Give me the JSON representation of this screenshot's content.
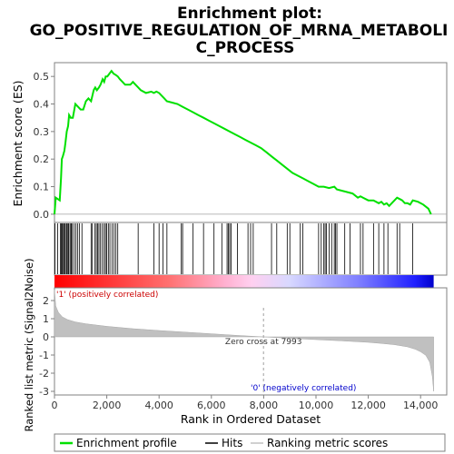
{
  "title_line1": "Enrichment plot:",
  "title_line2": "GO_POSITIVE_REGULATION_OF_MRNA_METABOLI",
  "title_line3": "C_PROCESS",
  "chart_data": {
    "type": "line",
    "top_panel": {
      "ylabel": "Enrichment score (ES)",
      "ylim": [
        -0.03,
        0.55
      ],
      "yticks": [
        "0.0",
        "0.1",
        "0.2",
        "0.3",
        "0.4",
        "0.5"
      ],
      "ytick_values": [
        0.0,
        0.1,
        0.2,
        0.3,
        0.4,
        0.5
      ],
      "series_color": "#00e000",
      "es_curve_x": [
        0,
        50,
        200,
        250,
        280,
        320,
        380,
        420,
        470,
        520,
        560,
        620,
        700,
        800,
        900,
        1000,
        1100,
        1200,
        1300,
        1400,
        1500,
        1560,
        1620,
        1700,
        1760,
        1840,
        1900,
        1960,
        2020,
        2100,
        2180,
        2260,
        2350,
        2420,
        2500,
        2600,
        2700,
        2800,
        2900,
        3000,
        3100,
        3200,
        3300,
        3500,
        3700,
        3800,
        3900,
        4000,
        4100,
        4200,
        4300,
        4500,
        4700,
        4900,
        5100,
        5300,
        5500,
        5700,
        5900,
        6100,
        6300,
        6500,
        6700,
        6900,
        7100,
        7300,
        7500,
        7700,
        7900,
        8100,
        8300,
        8500,
        8700,
        8900,
        9100,
        9300,
        9500,
        9700,
        9900,
        10100,
        10300,
        10500,
        10700,
        10800,
        11000,
        11200,
        11400,
        11600,
        11700,
        11800,
        12000,
        12200,
        12400,
        12500,
        12600,
        12700,
        12800,
        12950,
        13100,
        13200,
        13300,
        13400,
        13500,
        13600,
        13700,
        13900,
        14100,
        14300,
        14400
      ],
      "es_curve_y": [
        0.0,
        0.06,
        0.05,
        0.13,
        0.2,
        0.21,
        0.23,
        0.26,
        0.3,
        0.32,
        0.36,
        0.35,
        0.35,
        0.4,
        0.39,
        0.38,
        0.38,
        0.41,
        0.42,
        0.41,
        0.45,
        0.46,
        0.45,
        0.46,
        0.47,
        0.49,
        0.48,
        0.5,
        0.5,
        0.51,
        0.52,
        0.51,
        0.505,
        0.5,
        0.49,
        0.48,
        0.47,
        0.47,
        0.47,
        0.48,
        0.47,
        0.46,
        0.45,
        0.44,
        0.445,
        0.44,
        0.445,
        0.44,
        0.43,
        0.42,
        0.41,
        0.405,
        0.4,
        0.39,
        0.38,
        0.37,
        0.36,
        0.35,
        0.34,
        0.33,
        0.32,
        0.31,
        0.3,
        0.29,
        0.28,
        0.27,
        0.26,
        0.25,
        0.24,
        0.225,
        0.21,
        0.195,
        0.18,
        0.165,
        0.15,
        0.14,
        0.13,
        0.12,
        0.11,
        0.1,
        0.1,
        0.095,
        0.1,
        0.09,
        0.085,
        0.08,
        0.075,
        0.06,
        0.065,
        0.06,
        0.05,
        0.05,
        0.04,
        0.045,
        0.035,
        0.04,
        0.03,
        0.045,
        0.06,
        0.055,
        0.05,
        0.04,
        0.04,
        0.035,
        0.05,
        0.045,
        0.035,
        0.02,
        0.0
      ]
    },
    "hits_x": [
      20,
      120,
      230,
      260,
      290,
      320,
      360,
      400,
      450,
      480,
      520,
      550,
      600,
      640,
      680,
      750,
      820,
      880,
      950,
      1050,
      1400,
      1450,
      1550,
      1600,
      1650,
      1700,
      1760,
      1830,
      1900,
      1950,
      2000,
      2060,
      2120,
      2200,
      2280,
      2350,
      2420,
      3200,
      3800,
      4000,
      4150,
      4300,
      4850,
      4900,
      5300,
      5700,
      6100,
      6400,
      6600,
      6650,
      6700,
      6750,
      7000,
      7400,
      7500,
      7600,
      8300,
      8500,
      8900,
      9000,
      9400,
      9500,
      10100,
      10200,
      10300,
      10350,
      10400,
      10500,
      10600,
      10700,
      10750,
      10800,
      11100,
      11300,
      11700,
      11800,
      12200,
      12400,
      12600,
      12750,
      13100,
      13200,
      13700
    ],
    "middle_panel": {
      "label_positive": "'1' (positively correlated)",
      "label_negative": "'0' (negatively correlated)"
    },
    "bottom_panel": {
      "ylabel": "Ranked list metric (Signal2Noise)",
      "ylim": [
        -3.2,
        2.7
      ],
      "yticks": [
        "2",
        "1",
        "0",
        "-1",
        "-2",
        "-3"
      ],
      "ytick_values": [
        2,
        1,
        0,
        -1,
        -2,
        -3
      ],
      "zero_cross_label": "Zero cross at 7993",
      "zero_cross": 7993,
      "metric_x": [
        0,
        50,
        150,
        300,
        500,
        800,
        1200,
        2000,
        3000,
        4000,
        5000,
        6000,
        7000,
        7993,
        9000,
        10000,
        11000,
        12000,
        12500,
        13000,
        13500,
        13800,
        14000,
        14200,
        14350,
        14450,
        14500
      ],
      "metric_y": [
        2.6,
        1.7,
        1.35,
        1.1,
        0.95,
        0.82,
        0.72,
        0.58,
        0.45,
        0.35,
        0.26,
        0.17,
        0.08,
        0.0,
        -0.08,
        -0.15,
        -0.22,
        -0.3,
        -0.36,
        -0.43,
        -0.55,
        -0.68,
        -0.82,
        -1.02,
        -1.4,
        -2.2,
        -3.0
      ]
    },
    "xlabel": "Rank in Ordered Dataset",
    "xlim": [
      0,
      15000
    ],
    "xticks": [
      "0",
      "2,000",
      "4,000",
      "6,000",
      "8,000",
      "10,000",
      "12,000",
      "14,000"
    ],
    "xtick_values": [
      0,
      2000,
      4000,
      6000,
      8000,
      10000,
      12000,
      14000
    ],
    "n_genes": 14500,
    "legend": [
      {
        "label": "Enrichment profile",
        "color": "#00e000"
      },
      {
        "label": "Hits",
        "color": "#000000"
      },
      {
        "label": "Ranking metric scores",
        "color": "#c0c0c0"
      }
    ]
  }
}
